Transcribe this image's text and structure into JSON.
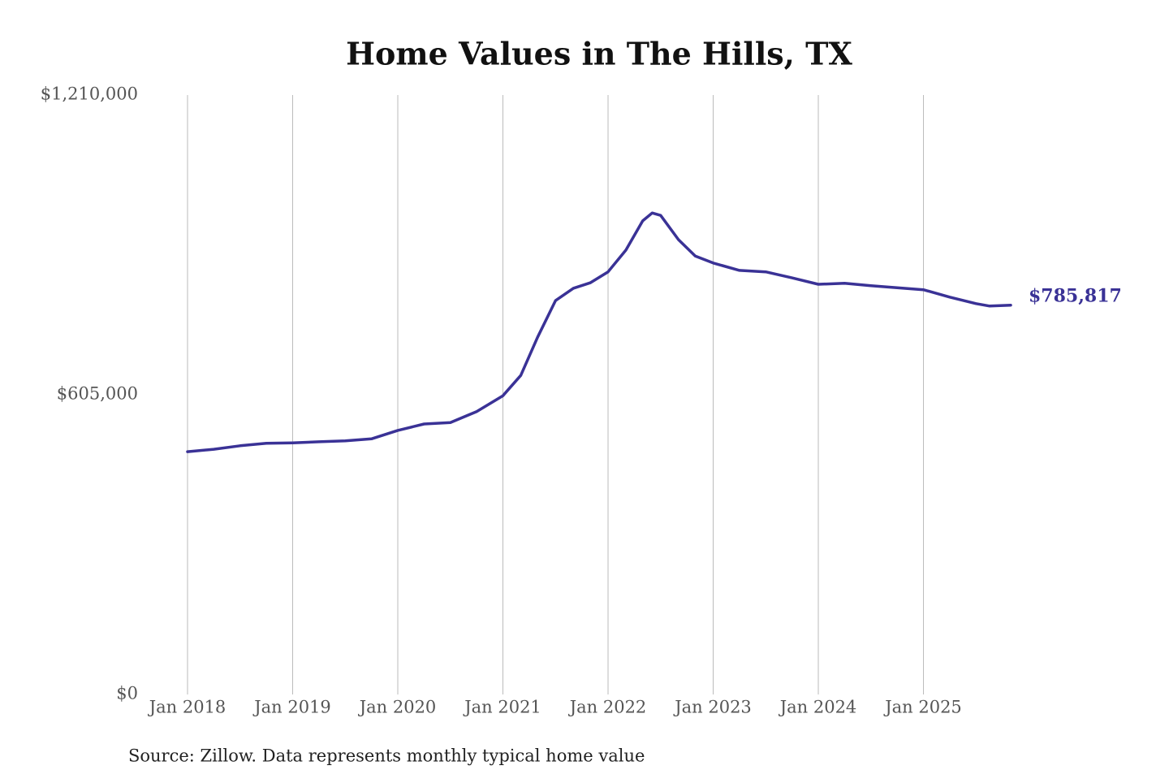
{
  "chart_data": {
    "type": "line",
    "title": "Home Values in The Hills, TX",
    "note": "Source: Zillow. Data represents monthly typical home value",
    "color": "#3a3296",
    "x": [
      2018,
      2018.25,
      2018.5,
      2018.75,
      2019,
      2019.25,
      2019.5,
      2019.75,
      2020,
      2020.25,
      2020.5,
      2020.75,
      2021,
      2021.17,
      2021.33,
      2021.5,
      2021.67,
      2021.83,
      2022,
      2022.17,
      2022.33,
      2022.42,
      2022.5,
      2022.67,
      2022.83,
      2023,
      2023.25,
      2023.5,
      2023.75,
      2024,
      2024.25,
      2024.5,
      2024.75,
      2025,
      2025.25,
      2025.5,
      2025.63,
      2025.83
    ],
    "values": [
      490000,
      495000,
      502000,
      507000,
      508000,
      510000,
      512000,
      516000,
      533000,
      546000,
      549000,
      571000,
      603000,
      644000,
      721000,
      795000,
      820000,
      831000,
      853000,
      897000,
      956000,
      972000,
      967000,
      918000,
      885000,
      871000,
      856000,
      853000,
      841000,
      828000,
      830000,
      825000,
      821000,
      817000,
      802000,
      789000,
      784000,
      785817
    ],
    "value_labels": [
      null,
      null,
      null,
      null,
      null,
      null,
      null,
      null,
      null,
      null,
      null,
      null,
      null,
      null,
      null,
      null,
      null,
      null,
      null,
      null,
      null,
      null,
      null,
      null,
      null,
      null,
      null,
      null,
      null,
      null,
      null,
      null,
      null,
      null,
      null,
      null,
      null,
      "$785,817"
    ],
    "xlim": [
      2018,
      2025.83
    ],
    "xticks": [
      {
        "value": 2018,
        "label": "Jan 2018"
      },
      {
        "value": 2019,
        "label": "Jan 2019"
      },
      {
        "value": 2020,
        "label": "Jan 2020"
      },
      {
        "value": 2021,
        "label": "Jan 2021"
      },
      {
        "value": 2022,
        "label": "Jan 2022"
      },
      {
        "value": 2023,
        "label": "Jan 2023"
      },
      {
        "value": 2024,
        "label": "Jan 2024"
      },
      {
        "value": 2025,
        "label": "Jan 2025"
      }
    ],
    "ylim": [
      0,
      1210000
    ],
    "yticks": [
      {
        "value": 0,
        "label": "$0"
      },
      {
        "value": 605000,
        "label": "$605,000"
      },
      {
        "value": 1210000,
        "label": "$1,210,000"
      }
    ],
    "grid": true
  }
}
